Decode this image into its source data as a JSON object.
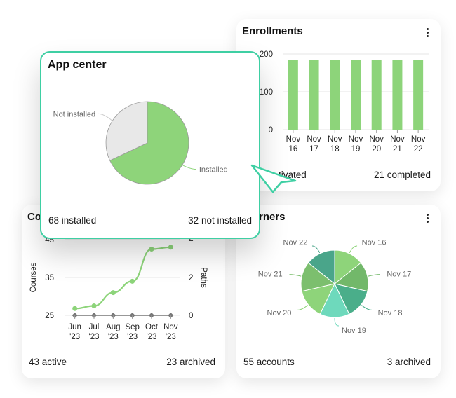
{
  "enrollments": {
    "title": "Enrollments",
    "chart_data": {
      "type": "bar",
      "categories": [
        [
          "Nov",
          "16"
        ],
        [
          "Nov",
          "17"
        ],
        [
          "Nov",
          "18"
        ],
        [
          "Nov",
          "19"
        ],
        [
          "Nov",
          "20"
        ],
        [
          "Nov",
          "21"
        ],
        [
          "Nov",
          "22"
        ]
      ],
      "values": [
        185,
        185,
        185,
        185,
        185,
        185,
        185
      ],
      "yticks": [
        "200",
        "100",
        "0"
      ],
      "ylim": [
        0,
        200
      ],
      "color": "#8dd47a"
    },
    "footer_left": "tivated",
    "footer_right": "21 completed"
  },
  "courses": {
    "title": "Co",
    "chart_data": {
      "type": "line",
      "categories": [
        [
          "Jun",
          "'23"
        ],
        [
          "Jul",
          "'23"
        ],
        [
          "Aug",
          "'23"
        ],
        [
          "Sep",
          "'23"
        ],
        [
          "Oct",
          "'23"
        ],
        [
          "Nov",
          "'23"
        ]
      ],
      "series": [
        {
          "name": "Courses",
          "values": [
            26.8,
            27.5,
            31,
            34,
            42.5,
            43
          ],
          "color": "#8dd47a"
        },
        {
          "name": "Paths",
          "values": [
            0,
            0,
            0,
            0,
            0,
            0
          ],
          "color": "#777777"
        }
      ],
      "left_ticks": [
        "45",
        "35",
        "25"
      ],
      "right_ticks": [
        "4",
        "2",
        "0"
      ],
      "ylabel_left": "Courses",
      "ylabel_right": "Paths",
      "ylim_left": [
        25,
        45
      ],
      "ylim_right": [
        0,
        4
      ]
    },
    "footer_left": "43 active",
    "footer_right": "23 archived"
  },
  "learners": {
    "title": "rners",
    "chart_data": {
      "type": "pie",
      "labels": [
        "Nov 16",
        "Nov 17",
        "Nov 18",
        "Nov 19",
        "Nov 20",
        "Nov 21",
        "Nov 22"
      ],
      "values": [
        1,
        1,
        1,
        1,
        1,
        1,
        1
      ],
      "colors": [
        "#8ed47a",
        "#72b86a",
        "#4aae8a",
        "#6ed9bc",
        "#8ed47a",
        "#7cbf6e",
        "#4aa58a"
      ]
    },
    "footer_left": "55 accounts",
    "footer_right": "3 archived"
  },
  "app_center": {
    "title": "App center",
    "chart_data": {
      "type": "pie",
      "labels": [
        "Installed",
        "Not installed"
      ],
      "values": [
        68,
        32
      ],
      "colors": [
        "#8ed47a",
        "#e8e8e8"
      ]
    },
    "footer_left": "68 installed",
    "footer_right": "32 not installed"
  },
  "accent_color": "#3ecfa3"
}
